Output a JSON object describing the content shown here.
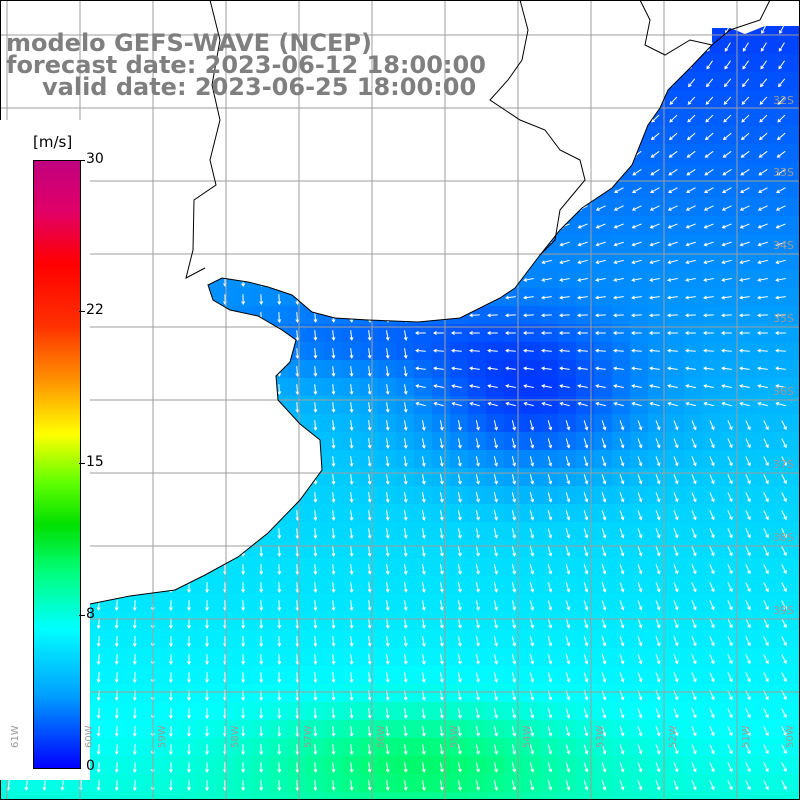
{
  "title": {
    "line1": "modelo GEFS-WAVE (NCEP)",
    "line2": "forecast date: 2023-06-12 18:00:00",
    "line3": "valid date: 2023-06-25 18:00:00"
  },
  "colorbar": {
    "unit": "[m/s]",
    "labels": [
      "30",
      "22",
      "15",
      "8",
      "0"
    ],
    "stops": [
      0,
      8,
      15,
      22,
      30
    ],
    "palette": [
      "#0000ff",
      "#00a0ff",
      "#00ffff",
      "#00e000",
      "#ffff00",
      "#ff9000",
      "#ff0000",
      "#c0007f"
    ]
  },
  "grid": {
    "lat_labels": [
      "32S",
      "33S",
      "34S",
      "35S",
      "36S",
      "37S",
      "38S",
      "39S"
    ],
    "lon_labels": [
      "61W",
      "60W",
      "59W",
      "58W",
      "57W",
      "56W",
      "55W",
      "54W",
      "53W",
      "52W",
      "51W",
      "50W"
    ]
  },
  "chart_data": {
    "type": "heatmap",
    "variable": "wind speed",
    "unit": "m/s",
    "value_range": [
      0,
      30
    ],
    "observed_range_estimate": [
      2,
      10
    ],
    "colors": {
      "land": "#ffffff",
      "coastline": "#000000",
      "gridlines": "#9e9e9e",
      "arrows": "#ffffff",
      "text": "#7f7f7f"
    }
  }
}
